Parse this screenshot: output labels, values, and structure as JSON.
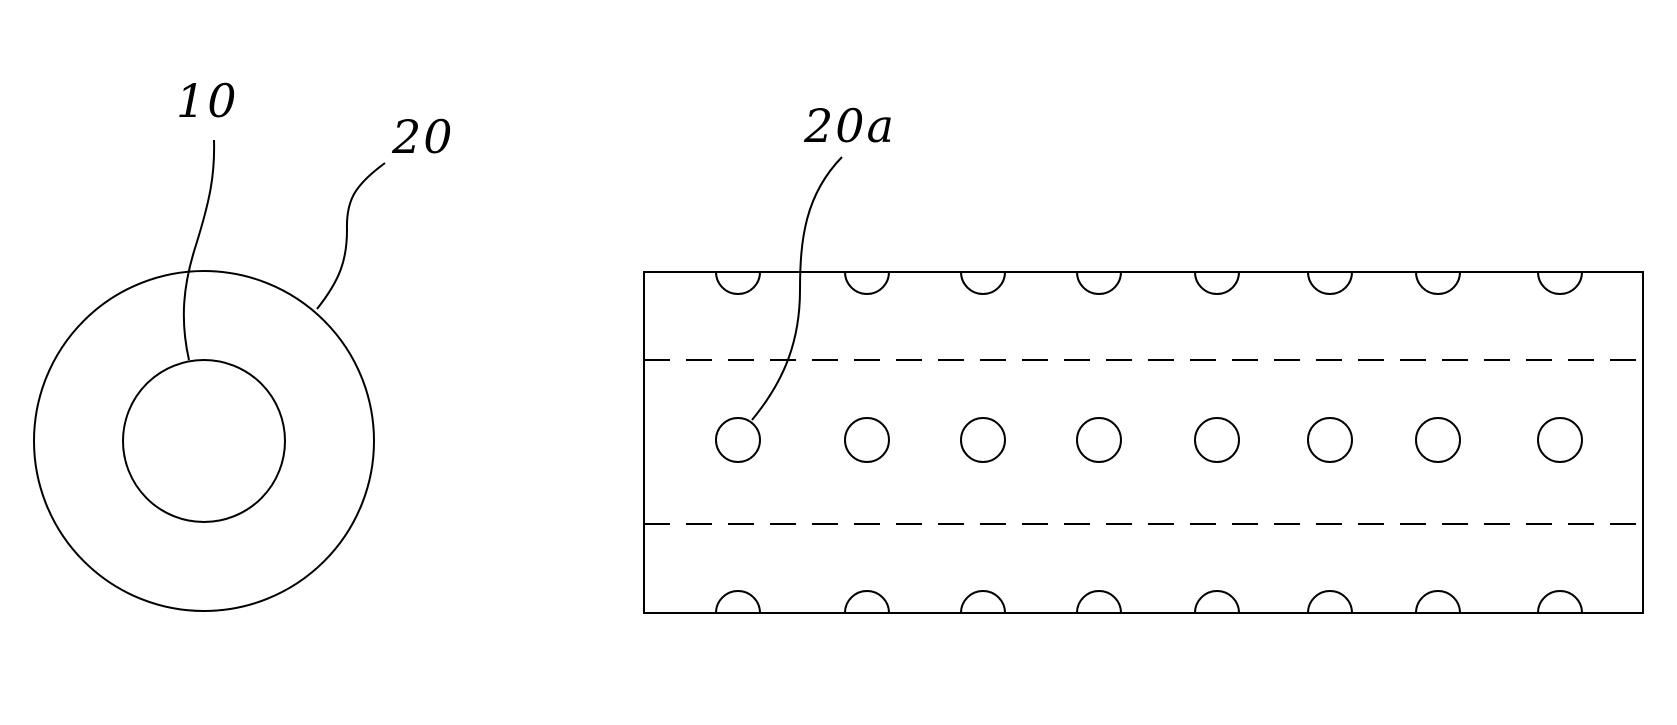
{
  "labels": {
    "inner_core": "10",
    "outer_ring": "20",
    "hole": "20a"
  },
  "perforated_tube": {
    "holes_per_row": 8,
    "rows": [
      "top-edge",
      "middle",
      "bottom-edge"
    ]
  },
  "colors": {
    "line": "#000000",
    "background": "#ffffff"
  }
}
